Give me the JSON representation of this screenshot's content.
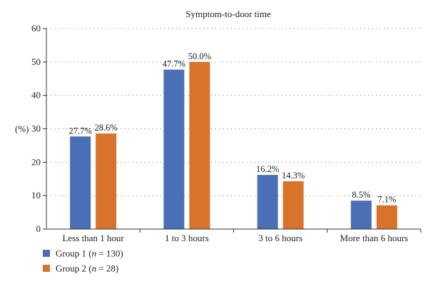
{
  "chart_data": {
    "type": "bar",
    "title": "Symptom-to-door time",
    "ylabel": "(%)",
    "xlabel": "",
    "ylim": [
      0,
      60
    ],
    "yticks": [
      0,
      10,
      20,
      30,
      40,
      50,
      60
    ],
    "grid": true,
    "legend_position": "bottom-left",
    "categories": [
      "Less than 1 hour",
      "1 to 3 hours",
      "3 to 6 hours",
      "More than 6 hours"
    ],
    "series": [
      {
        "name": "Group 1 (n = 130)",
        "name_parts": [
          "Group 1 (",
          "n",
          " = 130)"
        ],
        "color": "#4a6fb5",
        "values": [
          27.7,
          47.7,
          16.2,
          8.5
        ],
        "labels": [
          "27.7%",
          "47.7%",
          "16.2%",
          "8.5%"
        ]
      },
      {
        "name": "Group 2 (n = 28)",
        "name_parts": [
          "Group 2 (",
          "n",
          " = 28)"
        ],
        "color": "#d9722b",
        "values": [
          28.6,
          50.0,
          14.3,
          7.1
        ],
        "labels": [
          "28.6%",
          "50.0%",
          "14.3%",
          "7.1%"
        ]
      }
    ]
  }
}
